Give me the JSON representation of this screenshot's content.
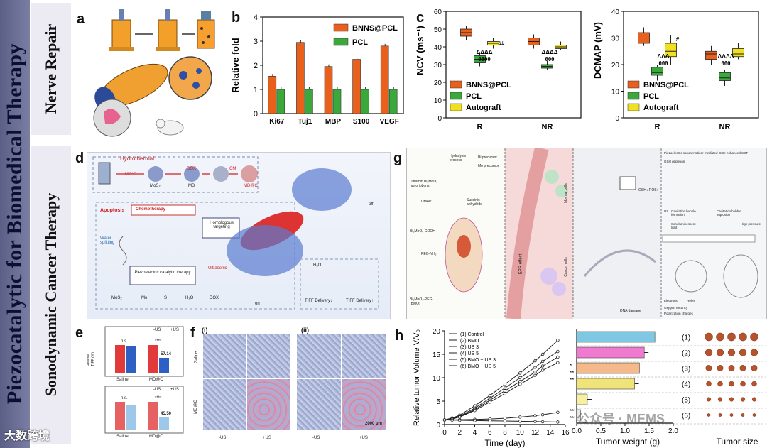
{
  "title": "Piezocatalytic for Biomedical Therapy",
  "sections": {
    "top": "Nerve Repair",
    "bottom": "Sonodynamic Cancer Therapy"
  },
  "panels": {
    "a": "a",
    "b": "b",
    "c": "c",
    "d": "d",
    "e": "e",
    "f": "f",
    "g": "g",
    "h": "h"
  },
  "chart_data": [
    {
      "id": "b",
      "type": "bar",
      "ylabel": "Relative fold",
      "categories": [
        "Ki67",
        "Tuj1",
        "MBP",
        "S100",
        "VEGF"
      ],
      "series": [
        {
          "name": "BNNS@PCL",
          "color": "#e8601c",
          "values": [
            1.55,
            2.95,
            1.95,
            2.25,
            2.8
          ]
        },
        {
          "name": "PCL",
          "color": "#3aa83a",
          "values": [
            1.0,
            1.0,
            1.0,
            1.0,
            1.0
          ]
        }
      ],
      "ylim": [
        0,
        4
      ],
      "yticks": [
        "0",
        "1",
        "2",
        "3",
        "4"
      ]
    },
    {
      "id": "c1",
      "type": "box",
      "ylabel": "NCV (ms⁻¹)",
      "categories": [
        "R",
        "NR"
      ],
      "ylim": [
        0,
        60
      ],
      "yticks": [
        "0",
        "10",
        "20",
        "30",
        "40",
        "50",
        "60"
      ],
      "legend": [
        "BNNS@PCL",
        "PCL",
        "Autograft"
      ],
      "marks": [
        "ΔΔΔΔ",
        "θθθθ",
        "##",
        "ΔΔΔΔ",
        "θθθ"
      ],
      "series": [
        {
          "name": "BNNS@PCL",
          "color": "#e8601c",
          "boxes": [
            [
              44,
              46,
              48,
              50,
              52
            ],
            [
              39,
              41,
              43,
              45,
              47
            ]
          ]
        },
        {
          "name": "PCL",
          "color": "#3aa83a",
          "boxes": [
            [
              29,
              31,
              33,
              35,
              37
            ],
            [
              27,
              28,
              29,
              30,
              32
            ]
          ]
        },
        {
          "name": "Autograft",
          "color": "#f0e020",
          "boxes": [
            [
              39,
              41,
              42,
              43,
              45
            ],
            [
              38,
              39,
              40,
              41,
              43
            ]
          ]
        }
      ]
    },
    {
      "id": "c2",
      "type": "box",
      "ylabel": "DCMAP (mV)",
      "categories": [
        "R",
        "NR"
      ],
      "ylim": [
        0,
        40
      ],
      "yticks": [
        "0",
        "10",
        "20",
        "30",
        "40"
      ],
      "legend": [
        "BNNS@PCL",
        "PCL",
        "Autograft"
      ],
      "marks": [
        "ΔΔΔ",
        "θθθ",
        "#",
        "ΔΔΔΔ",
        "θθθ"
      ],
      "series": [
        {
          "name": "BNNS@PCL",
          "color": "#e8601c",
          "boxes": [
            [
              27,
              28,
              30,
              32,
              34
            ],
            [
              20,
              22,
              24,
              25,
              27
            ]
          ]
        },
        {
          "name": "PCL",
          "color": "#3aa83a",
          "boxes": [
            [
              14,
              16,
              17,
              19,
              20
            ],
            [
              12,
              14,
              15,
              17,
              18
            ]
          ]
        },
        {
          "name": "Autograft",
          "color": "#f0e020",
          "boxes": [
            [
              20,
              23,
              25,
              28,
              31
            ],
            [
              22,
              23,
              24,
              26,
              28
            ]
          ]
        }
      ]
    },
    {
      "id": "h1",
      "type": "line",
      "xlabel": "Time (day)",
      "ylabel": "Relative tumor Volume V/V₀",
      "ylim": [
        0,
        20
      ],
      "xlim": [
        0,
        16
      ],
      "xticks": [
        "0",
        "2",
        "4",
        "6",
        "8",
        "10",
        "12",
        "14",
        "16"
      ],
      "yticks": [
        "0",
        "5",
        "10",
        "15",
        "20"
      ],
      "x": [
        0,
        1,
        2,
        4,
        6,
        8,
        10,
        12,
        13,
        15
      ],
      "series": [
        {
          "name": "(1) Control",
          "values": [
            1,
            1.4,
            2,
            4,
            6.2,
            8.6,
            11,
            13.6,
            15,
            18
          ]
        },
        {
          "name": "(2) BMO",
          "values": [
            1,
            1.3,
            1.8,
            3.5,
            5.6,
            7.8,
            10,
            12.2,
            13.5,
            15.6
          ]
        },
        {
          "name": "(3) US 3",
          "values": [
            1,
            1.25,
            1.7,
            3.2,
            5.2,
            7.2,
            9.2,
            11.2,
            12.5,
            14.4
          ]
        },
        {
          "name": "(4) US 5",
          "values": [
            1,
            1.2,
            1.6,
            3.0,
            4.8,
            6.6,
            8.6,
            10.5,
            11.6,
            13.2
          ]
        },
        {
          "name": "(5) BMO + US 3",
          "values": [
            1,
            1.0,
            1.05,
            1.1,
            1.2,
            1.35,
            1.6,
            1.9,
            2.1,
            2.6
          ]
        },
        {
          "name": "(6) BMO + US 5",
          "values": [
            1,
            0.95,
            0.9,
            0.85,
            0.8,
            0.75,
            0.7,
            0.65,
            0.6,
            0.55
          ]
        }
      ],
      "marks": [
        "*",
        "**",
        "**",
        "***",
        "***"
      ]
    },
    {
      "id": "h2",
      "type": "bar",
      "orientation": "horizontal",
      "xlabel": "Tumor weight (g)",
      "xlim": [
        0,
        2.0
      ],
      "xticks": [
        "0.0",
        "0.5",
        "1.0",
        "1.5",
        "2.0"
      ],
      "categories": [
        "(1)",
        "(2)",
        "(3)",
        "(4)",
        "(5)",
        "(6)"
      ],
      "values": [
        1.62,
        1.4,
        1.3,
        1.2,
        0.22,
        0.08
      ],
      "colors": [
        "#7ec8e3",
        "#f07ad0",
        "#f5b98a",
        "#f0e37a",
        "#f7f0a0",
        "#e7e7e7"
      ],
      "extra_label": "Tumor size"
    }
  ],
  "b_legend": [
    "BNNS@PCL",
    "PCL"
  ],
  "d": {
    "hydrothermal": "Hydrothermal",
    "temp": "180°C",
    "mos2": "MoS₂",
    "dox": "DOX",
    "md": "MD",
    "cm": "CM",
    "mdc": "MD@C",
    "apoptosis": "Apoptosis",
    "chemo": "Chemotherapy",
    "homologous": "Homologous targeting",
    "water": "Water splitting",
    "piezo": "Piezoelectric catalytic therapy",
    "ultrasonic": "Ultrasonic",
    "off": "off",
    "on": "on",
    "h2o": "H₂O",
    "tiff1": "TIFF Delivery↓",
    "tiff2": "TIFF Delivery↑",
    "legend": [
      "MoS₂",
      "Mo",
      "S",
      "H₂O",
      "DOX"
    ]
  },
  "e": {
    "ylabel": "Relative TIFP (%)",
    "legend1": [
      "-US",
      "+US"
    ],
    "legend2": [
      "-US",
      "+US"
    ],
    "groups": [
      "Saline",
      "MD@C"
    ],
    "v1": "57.14",
    "v2": "45.50",
    "ns": "n.s.",
    "sig": "****"
  },
  "f": {
    "i": "(i)",
    "ii": "(ii)",
    "rows": [
      "Saline",
      "MD@C"
    ],
    "cols": [
      "-US",
      "+US",
      "-US",
      "+US"
    ],
    "scale": "2000 μm"
  },
  "g": {
    "labels": [
      "Hydrolysis process",
      "Bi precursor",
      "Mo precursor",
      "Ultrathin Bi₂MoO₆ nanoribbons",
      "DMAP",
      "Succinic anhydride",
      "Bi₂MoO₆-COOH",
      "PEG-NH₂",
      "Bi₂MoO₆-PEG (BMO)",
      "EPR effect",
      "Normal cells",
      "Cancer cells",
      "GSH↓ ROS↑",
      "DNA damage",
      "Piezoelectric sonosensitizer-mediated GSH-enhanced SDT",
      "GSH depletion",
      "US",
      "Cavitation bubble formation",
      "Cavitation bubble implosion",
      "Sonoluminescent light",
      "High pressure",
      "Electrons",
      "Holes",
      "Oxygen vacancy",
      "Polarization charges"
    ]
  },
  "watermark": "公众号 · MEMS",
  "logo": "大数跨境"
}
